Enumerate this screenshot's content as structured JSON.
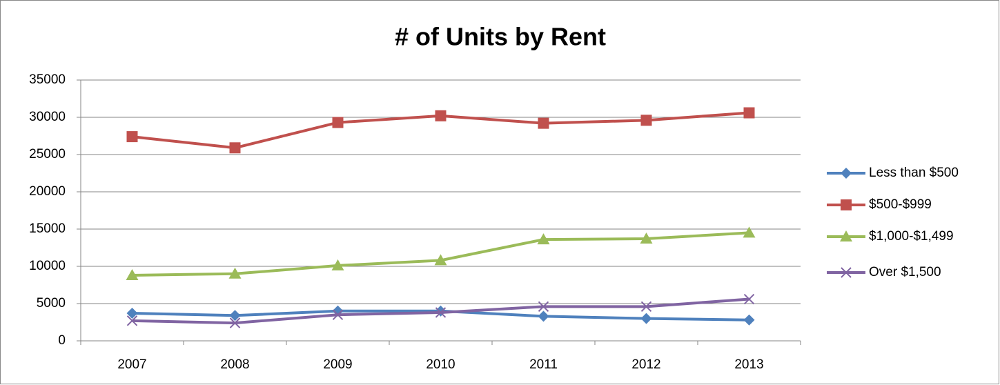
{
  "chart_data": {
    "type": "line",
    "title": "# of Units by Rent",
    "categories": [
      "2007",
      "2008",
      "2009",
      "2010",
      "2011",
      "2012",
      "2013"
    ],
    "series": [
      {
        "name": "Less than $500",
        "color": "#4f81bd",
        "marker": "diamond",
        "values": [
          3700,
          3400,
          4000,
          4000,
          3300,
          3000,
          2800
        ]
      },
      {
        "name": "$500-$999",
        "color": "#c0504d",
        "marker": "square",
        "values": [
          27400,
          25900,
          29300,
          30200,
          29200,
          29600,
          30600
        ]
      },
      {
        "name": "$1,000-$1,499",
        "color": "#9bbb59",
        "marker": "triangle",
        "values": [
          8800,
          9000,
          10100,
          10800,
          13600,
          13700,
          14500
        ]
      },
      {
        "name": "Over $1,500",
        "color": "#8064a2",
        "marker": "x",
        "values": [
          2700,
          2400,
          3500,
          3800,
          4600,
          4600,
          5600
        ]
      }
    ],
    "ylim": [
      0,
      35000
    ],
    "yticks": [
      0,
      5000,
      10000,
      15000,
      20000,
      25000,
      30000,
      35000
    ],
    "grid": true,
    "legend": "right"
  }
}
